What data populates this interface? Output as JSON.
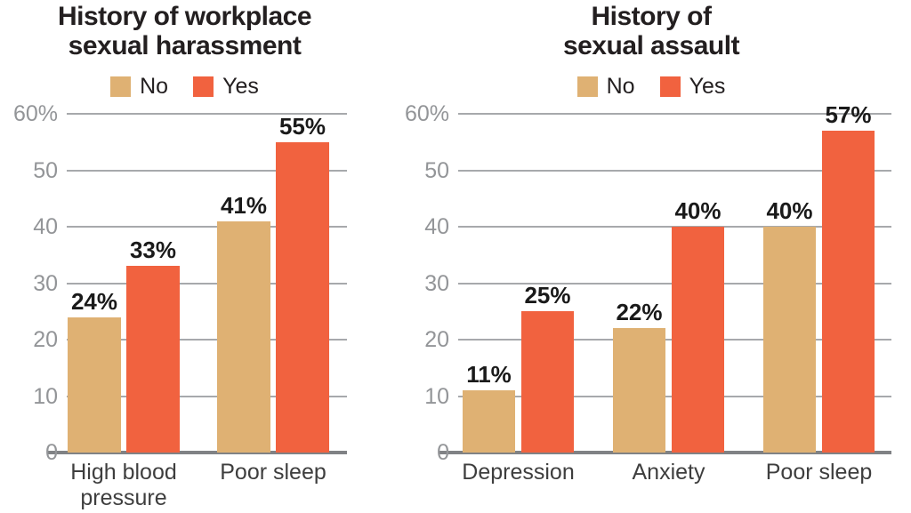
{
  "page": {
    "background": "#ffffff"
  },
  "colors": {
    "no": "#DFB173",
    "yes": "#F1623F",
    "title": "#231F20",
    "tick_label": "#939598",
    "gridline": "#A7A9AC",
    "baseline": "#808285",
    "value_label": "#1A1A1A",
    "category_label": "#3E3E3E"
  },
  "chart_data": [
    {
      "type": "bar",
      "title": "History of workplace sexual harassment",
      "title_lines": [
        "History of workplace",
        "sexual harassment"
      ],
      "legend_position": "top",
      "categories": [
        "High blood pressure",
        "Poor sleep"
      ],
      "series": [
        {
          "name": "No",
          "color_key": "no",
          "values": [
            24,
            41
          ]
        },
        {
          "name": "Yes",
          "color_key": "yes",
          "values": [
            33,
            55
          ]
        }
      ],
      "ylim": [
        0,
        60
      ],
      "yticks": [
        0,
        10,
        20,
        30,
        40,
        50,
        60
      ],
      "ytick_labels": [
        "0",
        "10",
        "20",
        "30",
        "40",
        "50",
        "60%"
      ],
      "value_label_suffix": "%",
      "grid": true
    },
    {
      "type": "bar",
      "title": "History of sexual assault",
      "title_lines": [
        "History of",
        "sexual assault"
      ],
      "legend_position": "top",
      "categories": [
        "Depression",
        "Anxiety",
        "Poor sleep"
      ],
      "series": [
        {
          "name": "No",
          "color_key": "no",
          "values": [
            11,
            22,
            40
          ]
        },
        {
          "name": "Yes",
          "color_key": "yes",
          "values": [
            25,
            40,
            57
          ]
        }
      ],
      "ylim": [
        0,
        60
      ],
      "yticks": [
        0,
        10,
        20,
        30,
        40,
        50,
        60
      ],
      "ytick_labels": [
        "0",
        "10",
        "20",
        "30",
        "40",
        "50",
        "60%"
      ],
      "value_label_suffix": "%",
      "grid": true
    }
  ]
}
